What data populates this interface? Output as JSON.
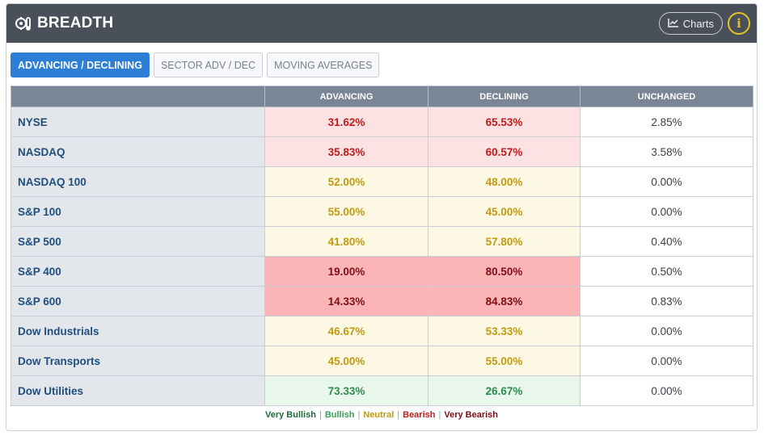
{
  "header": {
    "title": "BREADTH",
    "charts_label": "Charts",
    "info_label": "i"
  },
  "tabs": [
    {
      "label": "ADVANCING / DECLINING",
      "active": true
    },
    {
      "label": "SECTOR ADV / DEC",
      "active": false
    },
    {
      "label": "MOVING AVERAGES",
      "active": false
    }
  ],
  "table": {
    "columns": [
      "ADVANCING",
      "DECLINING",
      "UNCHANGED"
    ],
    "rows": [
      {
        "name": "NYSE",
        "advancing": "31.62%",
        "declining": "65.53%",
        "unchanged": "2.85%",
        "sentiment": "bearish"
      },
      {
        "name": "NASDAQ",
        "advancing": "35.83%",
        "declining": "60.57%",
        "unchanged": "3.58%",
        "sentiment": "bearish"
      },
      {
        "name": "NASDAQ 100",
        "advancing": "52.00%",
        "declining": "48.00%",
        "unchanged": "0.00%",
        "sentiment": "neutral"
      },
      {
        "name": "S&P 100",
        "advancing": "55.00%",
        "declining": "45.00%",
        "unchanged": "0.00%",
        "sentiment": "neutral"
      },
      {
        "name": "S&P 500",
        "advancing": "41.80%",
        "declining": "57.80%",
        "unchanged": "0.40%",
        "sentiment": "neutral"
      },
      {
        "name": "S&P 400",
        "advancing": "19.00%",
        "declining": "80.50%",
        "unchanged": "0.50%",
        "sentiment": "verybearish"
      },
      {
        "name": "S&P 600",
        "advancing": "14.33%",
        "declining": "84.83%",
        "unchanged": "0.83%",
        "sentiment": "verybearish"
      },
      {
        "name": "Dow Industrials",
        "advancing": "46.67%",
        "declining": "53.33%",
        "unchanged": "0.00%",
        "sentiment": "neutral"
      },
      {
        "name": "Dow Transports",
        "advancing": "45.00%",
        "declining": "55.00%",
        "unchanged": "0.00%",
        "sentiment": "neutral"
      },
      {
        "name": "Dow Utilities",
        "advancing": "73.33%",
        "declining": "26.67%",
        "unchanged": "0.00%",
        "sentiment": "bullish"
      }
    ]
  },
  "legend": {
    "very_bullish": "Very Bullish",
    "bullish": "Bullish",
    "neutral": "Neutral",
    "bearish": "Bearish",
    "very_bearish": "Very Bearish"
  },
  "colors": {
    "header_bg": "#4a505a",
    "accent": "#2c7fd4",
    "bearish": "#c01a1a",
    "very_bearish": "#7d0f14",
    "neutral": "#c29a0f",
    "bullish": "#2e8b4e"
  },
  "icons": {
    "title": "breadth-gauge-icon",
    "charts": "line-chart-icon",
    "info": "info-icon"
  }
}
